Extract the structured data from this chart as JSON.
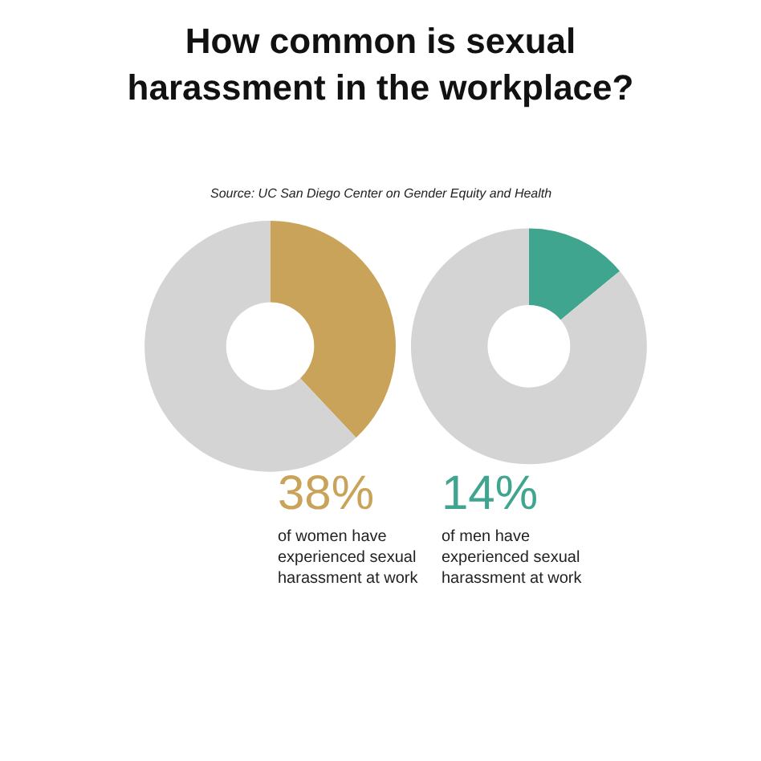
{
  "chart_data": [
    {
      "type": "donut",
      "title": "How common is sexual\nharassment in the workplace?",
      "annotations": [
        "Source: UC San Diego Center on Gender Equity and Health",
        "38%",
        "of women have\nexperienced sexual\nharassment at work"
      ],
      "categories": [
        null,
        null
      ],
      "values": [
        38,
        62
      ],
      "colors": [
        "#c9a35a",
        "#d4d4d4"
      ]
    },
    {
      "type": "donut",
      "annotations": [
        "14%",
        "of men have\nexperienced sexual\nharassment at work"
      ],
      "categories": [
        null,
        null
      ],
      "values": [
        14,
        86
      ],
      "colors": [
        "#3fa58e",
        "#d4d4d4"
      ]
    }
  ]
}
